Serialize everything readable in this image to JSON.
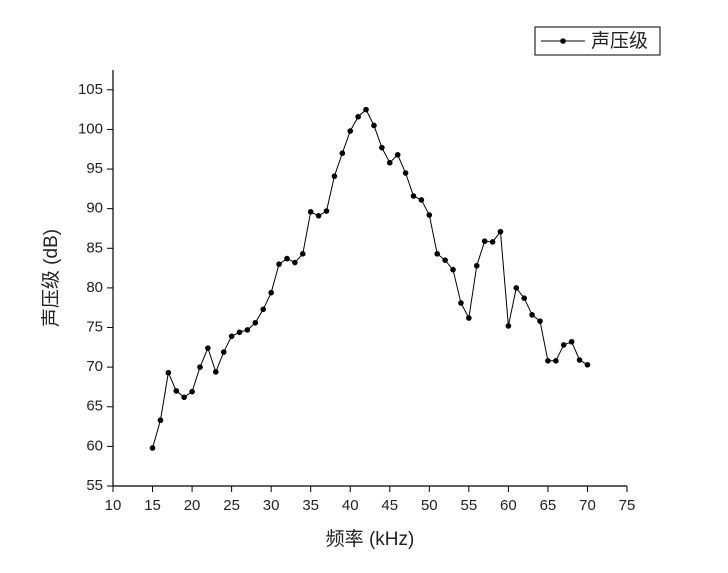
{
  "chart_data": {
    "type": "line",
    "xlabel": "频率 (kHz)",
    "ylabel": "声压级 (dB)",
    "x": [
      15,
      16,
      17,
      18,
      19,
      20,
      21,
      22,
      23,
      24,
      25,
      26,
      27,
      28,
      29,
      30,
      31,
      32,
      33,
      34,
      35,
      36,
      37,
      38,
      39,
      40,
      41,
      42,
      43,
      44,
      45,
      46,
      47,
      48,
      49,
      50,
      51,
      52,
      53,
      54,
      55,
      56,
      57,
      58,
      59,
      60,
      61,
      62,
      63,
      64,
      65,
      66,
      67,
      68,
      69,
      70
    ],
    "series": [
      {
        "name": "声压级",
        "color": "#000000",
        "values": [
          59.8,
          63.3,
          69.3,
          67.0,
          66.2,
          66.9,
          70.0,
          72.4,
          69.4,
          71.9,
          73.9,
          74.4,
          74.7,
          75.6,
          77.3,
          79.4,
          83.0,
          83.7,
          83.2,
          84.3,
          89.6,
          89.1,
          89.7,
          94.1,
          97.0,
          99.8,
          101.6,
          102.5,
          100.5,
          97.7,
          95.8,
          96.8,
          94.5,
          91.6,
          91.1,
          89.2,
          84.3,
          83.5,
          82.3,
          78.1,
          76.2,
          82.8,
          85.9,
          85.8,
          87.1,
          75.2,
          80.0,
          78.7,
          76.6,
          75.8,
          70.8,
          70.8,
          72.8,
          73.2,
          70.9,
          70.3
        ]
      }
    ],
    "xlim": [
      10,
      75
    ],
    "xticks": [
      10,
      15,
      20,
      25,
      30,
      35,
      40,
      45,
      50,
      55,
      60,
      65,
      70,
      75
    ],
    "ylim": [
      55,
      107.5
    ],
    "yticks": [
      55,
      60,
      65,
      70,
      75,
      80,
      85,
      90,
      95,
      100,
      105
    ],
    "legend": "upper right"
  }
}
